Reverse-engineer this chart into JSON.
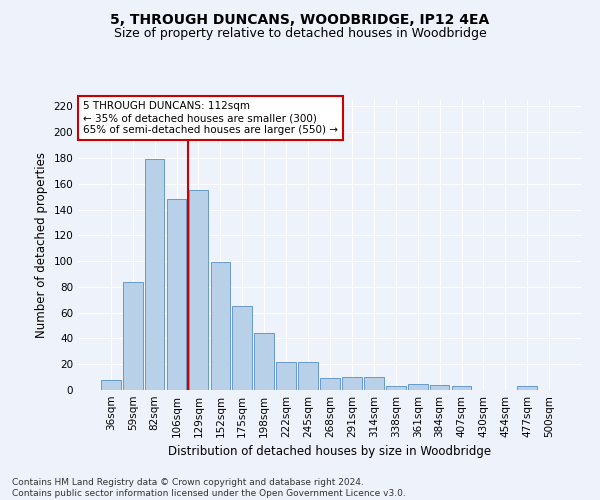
{
  "title": "5, THROUGH DUNCANS, WOODBRIDGE, IP12 4EA",
  "subtitle": "Size of property relative to detached houses in Woodbridge",
  "xlabel": "Distribution of detached houses by size in Woodbridge",
  "ylabel": "Number of detached properties",
  "categories": [
    "36sqm",
    "59sqm",
    "82sqm",
    "106sqm",
    "129sqm",
    "152sqm",
    "175sqm",
    "198sqm",
    "222sqm",
    "245sqm",
    "268sqm",
    "291sqm",
    "314sqm",
    "338sqm",
    "361sqm",
    "384sqm",
    "407sqm",
    "430sqm",
    "454sqm",
    "477sqm",
    "500sqm"
  ],
  "values": [
    8,
    84,
    179,
    148,
    155,
    99,
    65,
    44,
    22,
    22,
    9,
    10,
    10,
    3,
    5,
    4,
    3,
    0,
    0,
    3,
    0
  ],
  "bar_color": "#b8d0e8",
  "bar_edge_color": "#6699cc",
  "vline_x": 3.5,
  "vline_color": "#cc0000",
  "annotation_text": "5 THROUGH DUNCANS: 112sqm\n← 35% of detached houses are smaller (300)\n65% of semi-detached houses are larger (550) →",
  "annotation_box_color": "#ffffff",
  "annotation_box_edge_color": "#cc0000",
  "ylim": [
    0,
    225
  ],
  "yticks": [
    0,
    20,
    40,
    60,
    80,
    100,
    120,
    140,
    160,
    180,
    200,
    220
  ],
  "background_color": "#eef2fa",
  "grid_color": "#ffffff",
  "footer": "Contains HM Land Registry data © Crown copyright and database right 2024.\nContains public sector information licensed under the Open Government Licence v3.0.",
  "title_fontsize": 10,
  "subtitle_fontsize": 9,
  "xlabel_fontsize": 8.5,
  "ylabel_fontsize": 8.5,
  "tick_fontsize": 7.5,
  "annotation_fontsize": 7.5,
  "footer_fontsize": 6.5
}
